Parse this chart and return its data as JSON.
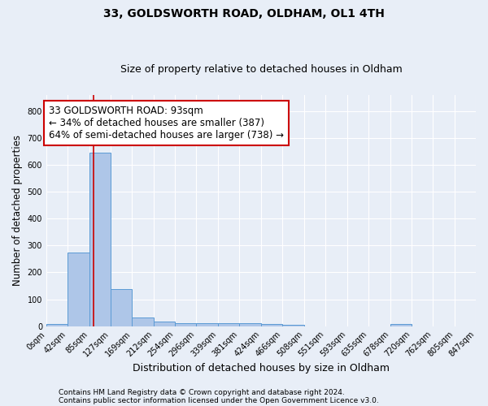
{
  "title1": "33, GOLDSWORTH ROAD, OLDHAM, OL1 4TH",
  "title2": "Size of property relative to detached houses in Oldham",
  "xlabel": "Distribution of detached houses by size in Oldham",
  "ylabel": "Number of detached properties",
  "footnote1": "Contains HM Land Registry data © Crown copyright and database right 2024.",
  "footnote2": "Contains public sector information licensed under the Open Government Licence v3.0.",
  "bin_edges": [
    0,
    42,
    85,
    127,
    169,
    212,
    254,
    296,
    339,
    381,
    424,
    466,
    508,
    551,
    593,
    635,
    678,
    720,
    762,
    805,
    847
  ],
  "bar_values": [
    8,
    275,
    645,
    138,
    33,
    18,
    12,
    10,
    10,
    10,
    8,
    5,
    0,
    0,
    0,
    0,
    7,
    0,
    0,
    0
  ],
  "bar_color": "#aec6e8",
  "bar_edge_color": "#5b9bd5",
  "property_size": 93,
  "vline_color": "#cc0000",
  "annotation_line1": "33 GOLDSWORTH ROAD: 93sqm",
  "annotation_line2": "← 34% of detached houses are smaller (387)",
  "annotation_line3": "64% of semi-detached houses are larger (738) →",
  "annotation_box_color": "#ffffff",
  "annotation_box_edge_color": "#cc0000",
  "ylim": [
    0,
    860
  ],
  "yticks": [
    0,
    100,
    200,
    300,
    400,
    500,
    600,
    700,
    800
  ],
  "bg_color": "#e8eef7",
  "grid_color": "#ffffff",
  "title1_fontsize": 10,
  "title2_fontsize": 9,
  "tick_label_fontsize": 7,
  "ylabel_fontsize": 8.5,
  "xlabel_fontsize": 9,
  "annotation_fontsize": 8.5,
  "footnote_fontsize": 6.5
}
